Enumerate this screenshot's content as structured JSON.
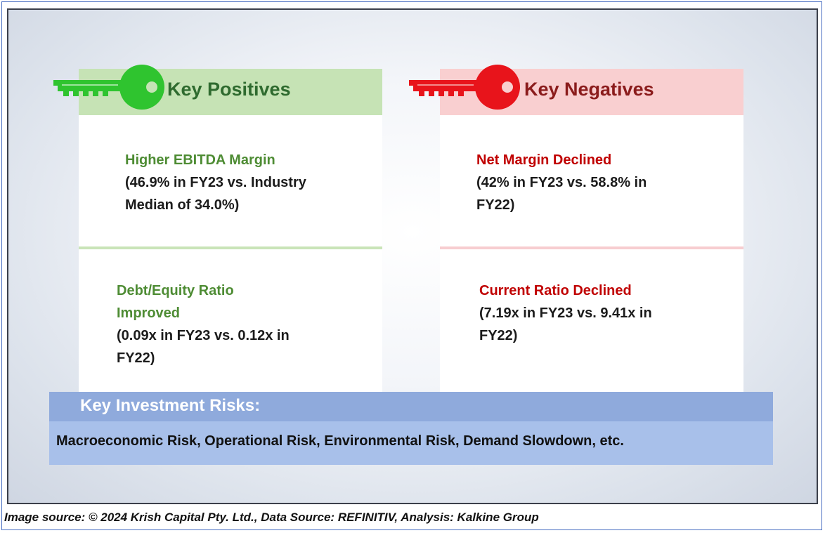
{
  "positives": {
    "header": "Key Positives",
    "items": [
      {
        "title": "Higher EBITDA Margin",
        "line1": "(46.9% in FY23 vs. Industry",
        "line2": "Median of 34.0%)"
      },
      {
        "title": "Debt/Equity Ratio",
        "title2": "Improved",
        "line1": "(0.09x in FY23 vs. 0.12x in",
        "line2": "FY22)"
      }
    ],
    "accent": "#2f6b2f",
    "key_color": "#2fc42f"
  },
  "negatives": {
    "header": "Key Negatives",
    "items": [
      {
        "title": "Net Margin Declined",
        "line1": "(42% in FY23 vs. 58.8% in",
        "line2": "FY22)"
      },
      {
        "title": "Current Ratio Declined",
        "line1": "(7.19x in FY23 vs. 9.41x in",
        "line2": "FY22)"
      }
    ],
    "accent": "#8b1c1c",
    "key_color": "#e8141b"
  },
  "risks": {
    "header": "Key Investment Risks:",
    "body": "Macroeconomic Risk, Operational Risk, Environmental Risk, Demand Slowdown, etc."
  },
  "source": "Image source: © 2024 Krish Capital Pty. Ltd., Data Source: REFINITIV, Analysis: Kalkine Group"
}
